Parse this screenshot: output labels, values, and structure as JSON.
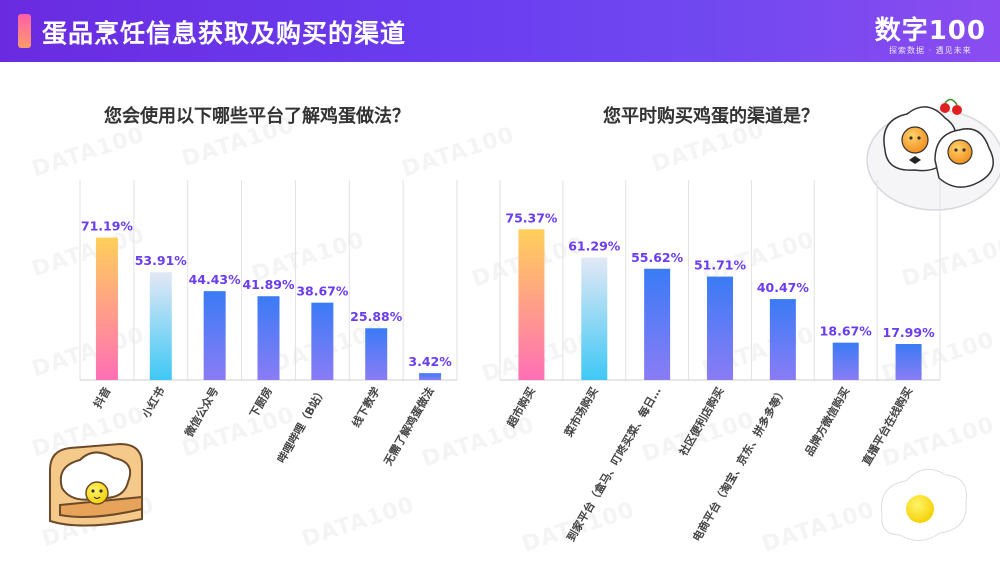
{
  "header": {
    "title": "蛋品烹饪信息获取及购买的渠道",
    "brand_name": "数字100",
    "brand_sub": "探索数据 · 遇见未来"
  },
  "watermark_text": "DATA100",
  "colors": {
    "header": "#6a2be0",
    "bar_highlight_top": "#ffcf5a",
    "bar_highlight_bottom": "#ff6fb5",
    "bar_second_top": "#dfe6f5",
    "bar_second_bottom": "#3fc8f5",
    "bar_top": "#3a7bf5",
    "bar_bottom": "#8a7cf5",
    "value_label": "#6a3df0"
  },
  "chart_data": [
    {
      "type": "bar",
      "title": "您会使用以下哪些平台了解鸡蛋做法？",
      "categories": [
        "抖音",
        "小红书",
        "微信公众号",
        "下厨房",
        "哔哩哔哩（B站）",
        "线下教学",
        "无需了解鸡蛋做法"
      ],
      "values": [
        71.19,
        53.91,
        44.43,
        41.89,
        38.67,
        25.88,
        3.42
      ],
      "value_labels": [
        "71.19%",
        "53.91%",
        "44.43%",
        "41.89%",
        "38.67%",
        "25.88%",
        "3.42%"
      ],
      "ylim": [
        0,
        100
      ],
      "grid": "vertical separators"
    },
    {
      "type": "bar",
      "title": "您平时购买鸡蛋的渠道是？",
      "categories": [
        "超市购买",
        "菜市场购买",
        "到家平台（盒马、叮咚买菜、每日…",
        "社区便利店购买",
        "电商平台（淘宝、京东、拼多多等）",
        "品牌方微信购买",
        "直播平台在线购买"
      ],
      "values": [
        75.37,
        61.29,
        55.62,
        51.71,
        40.47,
        18.67,
        17.99
      ],
      "value_labels": [
        "75.37%",
        "61.29%",
        "55.62%",
        "51.71%",
        "40.47%",
        "18.67%",
        "17.99%"
      ],
      "ylim": [
        0,
        100
      ],
      "grid": "vertical separators"
    }
  ]
}
